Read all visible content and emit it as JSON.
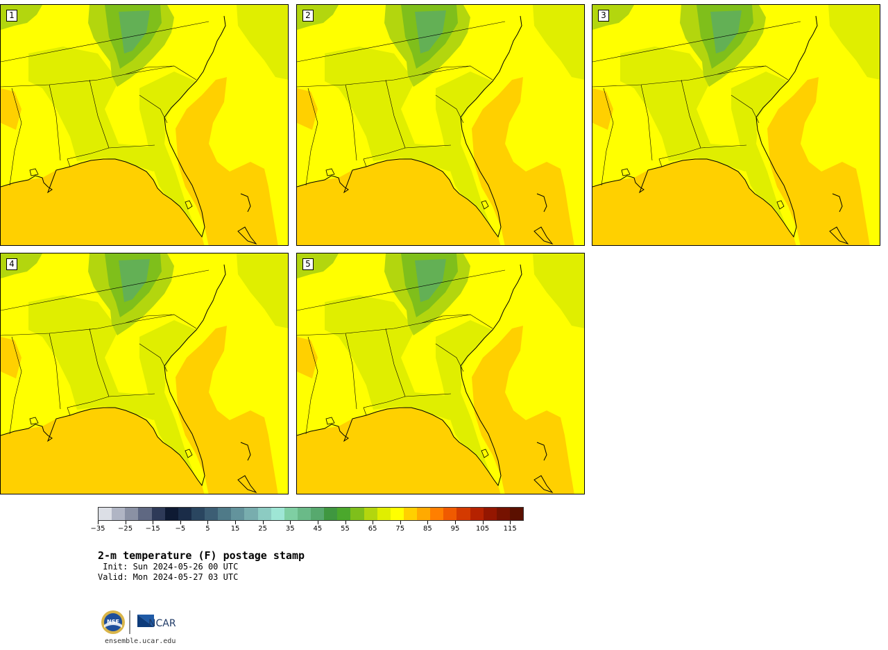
{
  "panels": [
    {
      "label": "1"
    },
    {
      "label": "2"
    },
    {
      "label": "3"
    },
    {
      "label": "4"
    },
    {
      "label": "5"
    }
  ],
  "colorbar": {
    "colors": [
      "#dcdfe6",
      "#b0b5c4",
      "#8a91a4",
      "#5f6882",
      "#2e3a58",
      "#0e1a33",
      "#1a2c48",
      "#2a4660",
      "#3c5e74",
      "#4f7a88",
      "#63939c",
      "#78adae",
      "#8ccbc2",
      "#9ee6d5",
      "#7fcfa3",
      "#6aba88",
      "#57a96e",
      "#3f9740",
      "#4ba82c",
      "#7fbf1b",
      "#b3d60e",
      "#e0ee00",
      "#ffff00",
      "#ffd000",
      "#ffaa00",
      "#ff7f00",
      "#f05a00",
      "#d43a00",
      "#b52200",
      "#941600",
      "#761200",
      "#5b1000"
    ],
    "tick_values": [
      -35,
      -25,
      -15,
      -5,
      5,
      15,
      25,
      35,
      45,
      55,
      65,
      75,
      85,
      95,
      105,
      115
    ],
    "tick_labels": [
      "−35",
      "−25",
      "−15",
      "−5",
      "5",
      "15",
      "25",
      "35",
      "45",
      "55",
      "65",
      "75",
      "85",
      "95",
      "105",
      "115"
    ],
    "range": [
      -35,
      120
    ]
  },
  "title": "2-m temperature (F) postage stamp",
  "init": " Init: Sun 2024-05-26 00 UTC",
  "valid": "Valid: Mon 2024-05-27 03 UTC",
  "logo": {
    "nsf": "NSF",
    "ncar": "NCAR"
  },
  "site": "ensemble.ucar.edu"
}
